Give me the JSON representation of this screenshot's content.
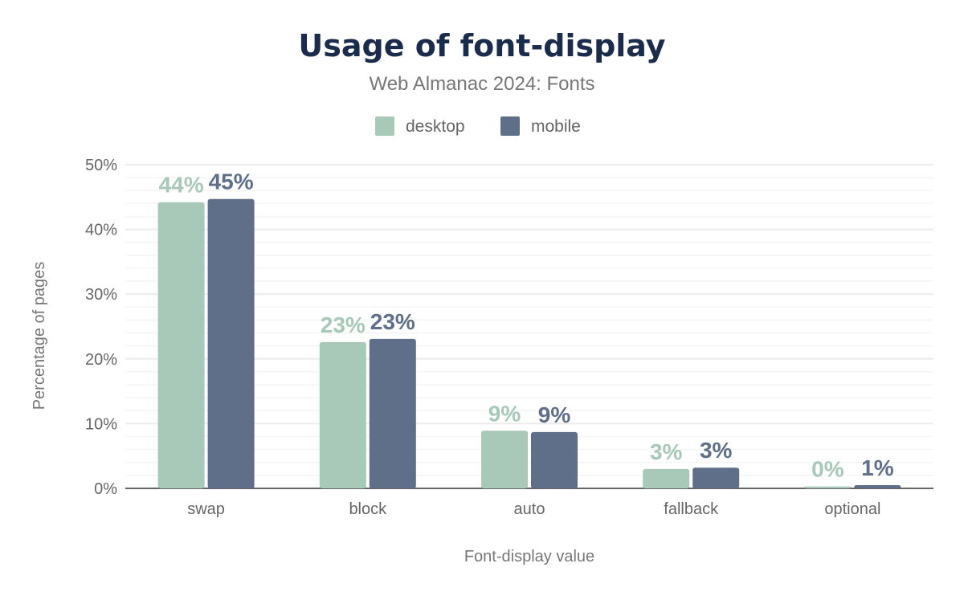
{
  "chart_data": {
    "type": "bar",
    "title": "Usage of font-display",
    "subtitle": "Web Almanac 2024: Fonts",
    "xlabel": "Font-display value",
    "ylabel": "Percentage of pages",
    "categories": [
      "swap",
      "block",
      "auto",
      "fallback",
      "optional"
    ],
    "series": [
      {
        "name": "desktop",
        "color": "#a8c9b8",
        "values": [
          44.2,
          22.6,
          8.9,
          3.0,
          0.3
        ],
        "labels": [
          "44%",
          "23%",
          "9%",
          "3%",
          "0%"
        ]
      },
      {
        "name": "mobile",
        "color": "#5f6f89",
        "values": [
          44.7,
          23.1,
          8.7,
          3.2,
          0.5
        ],
        "labels": [
          "45%",
          "23%",
          "9%",
          "3%",
          "1%"
        ]
      }
    ],
    "ylim": [
      0,
      50
    ],
    "yticks": [
      "0%",
      "10%",
      "20%",
      "30%",
      "40%",
      "50%"
    ],
    "grid": true,
    "legend_position": "top"
  }
}
